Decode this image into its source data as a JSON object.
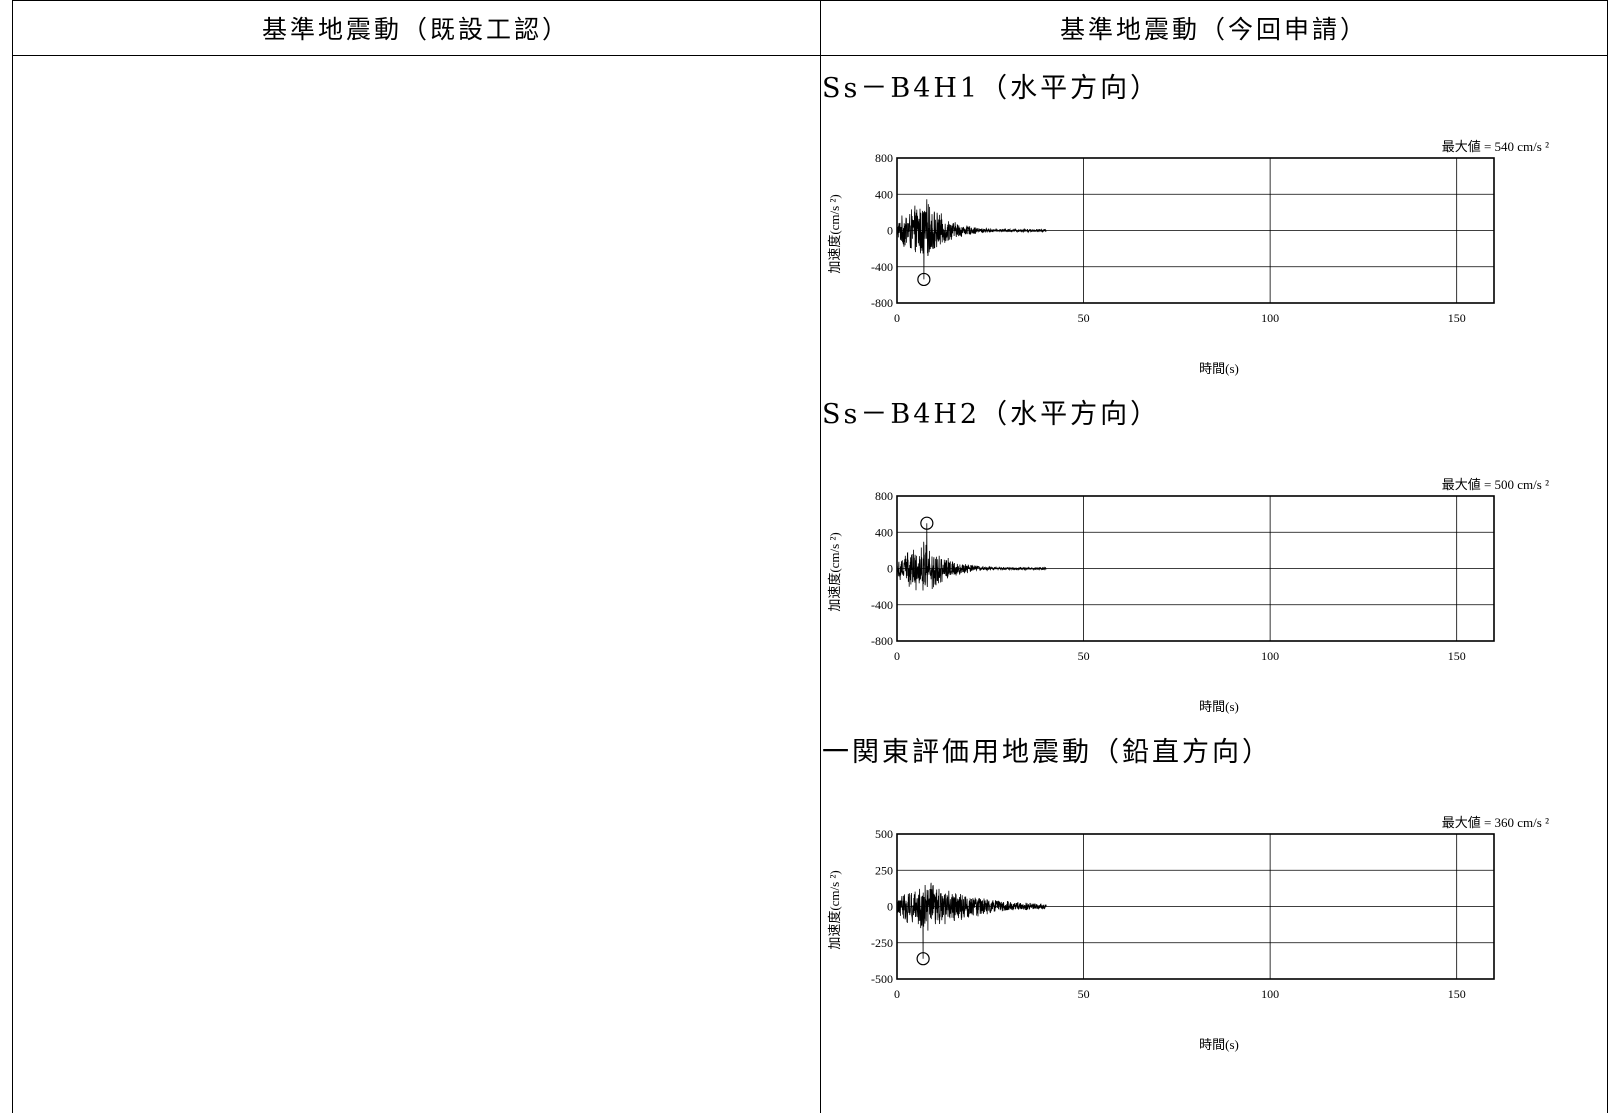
{
  "table": {
    "left_header": "基準地震動（既設工認）",
    "right_header": "基準地震動（今回申請）"
  },
  "chart_data": [
    {
      "type": "line",
      "title": "Ss－B4H1（水平方向）",
      "max_label": "最大値 = 540 cm/s ²",
      "xlabel": "時間(s)",
      "ylabel": "加速度(cm/s ²)",
      "xlim": [
        0,
        160
      ],
      "ylim": [
        -800,
        800
      ],
      "xticks": [
        0,
        50,
        100,
        150
      ],
      "yticks": [
        800,
        400,
        0,
        -400,
        -800
      ],
      "grid": true,
      "duration": 40,
      "peak": {
        "t": 7.2,
        "value": -540
      },
      "envelope_amp": 360
    },
    {
      "type": "line",
      "title": "Ss－B4H2（水平方向）",
      "max_label": "最大値 = 500 cm/s ²",
      "xlabel": "時間(s)",
      "ylabel": "加速度(cm/s ²)",
      "xlim": [
        0,
        160
      ],
      "ylim": [
        -800,
        800
      ],
      "xticks": [
        0,
        50,
        100,
        150
      ],
      "yticks": [
        800,
        400,
        0,
        -400,
        -800
      ],
      "grid": true,
      "duration": 40,
      "peak": {
        "t": 8.0,
        "value": 500
      },
      "envelope_amp": 330
    },
    {
      "type": "line",
      "title": "一関東評価用地震動（鉛直方向）",
      "max_label": "最大値 = 360 cm/s ²",
      "xlabel": "時間(s)",
      "ylabel": "加速度(cm/s ²)",
      "xlim": [
        0,
        160
      ],
      "ylim": [
        -500,
        500
      ],
      "xticks": [
        0,
        50,
        100,
        150
      ],
      "yticks": [
        500,
        250,
        0,
        -250,
        -500
      ],
      "grid": true,
      "duration": 40,
      "peak": {
        "t": 7.0,
        "value": -360
      },
      "envelope_amp": 190
    }
  ]
}
